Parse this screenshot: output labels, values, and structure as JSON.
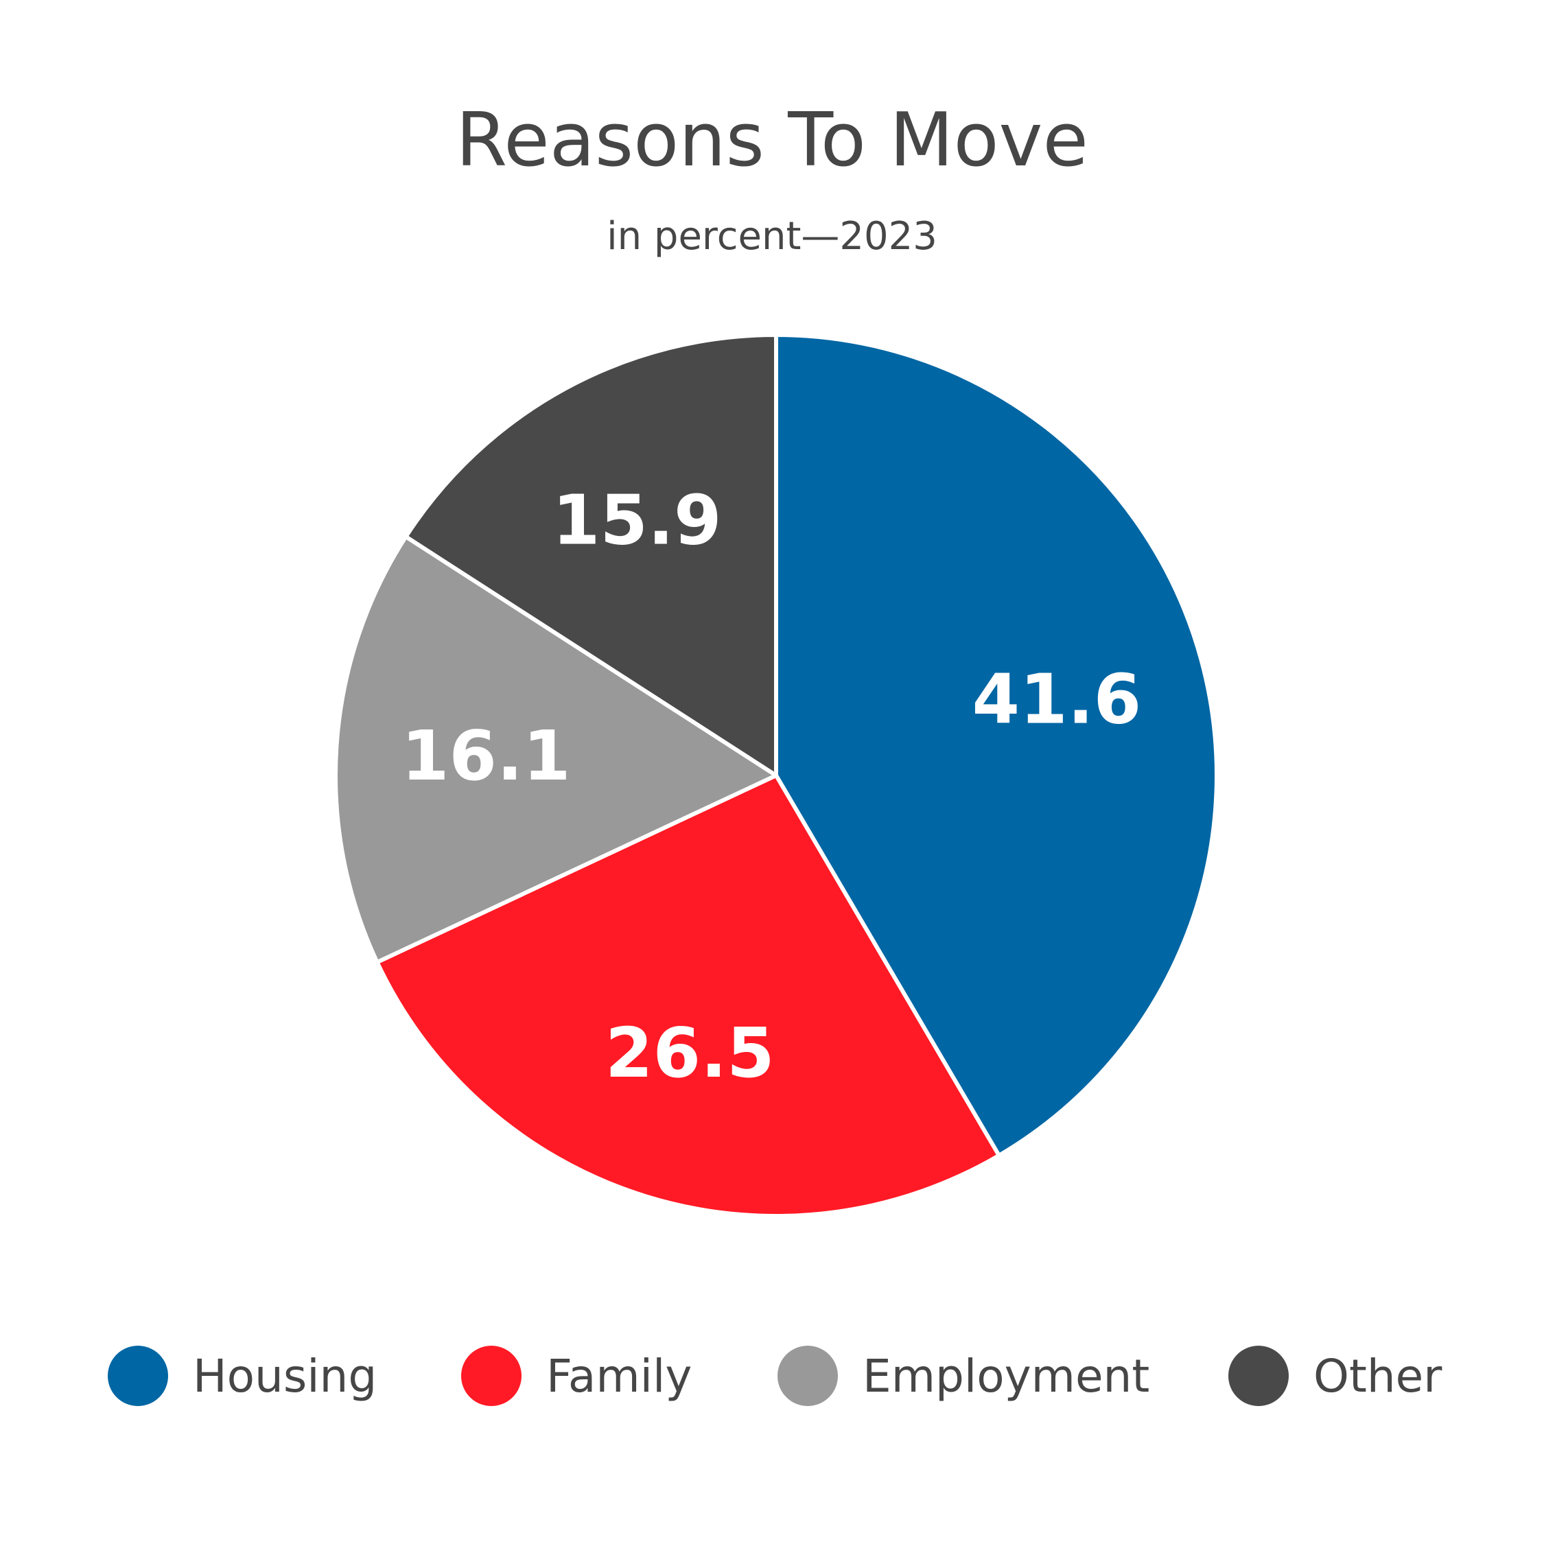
{
  "chart_data": {
    "type": "pie",
    "title": "Reasons To Move",
    "subtitle": "in percent—2023",
    "slices": [
      {
        "label": "Housing",
        "value": 41.6,
        "value_label": "41.6",
        "color": "#0066a4"
      },
      {
        "label": "Family",
        "value": 26.5,
        "value_label": "26.5",
        "color": "#ff1a25"
      },
      {
        "label": "Employment",
        "value": 16.1,
        "value_label": "16.1",
        "color": "#999999"
      },
      {
        "label": "Other",
        "value": 15.9,
        "value_label": "15.9",
        "color": "#494949"
      }
    ],
    "start_direction": "top, clockwise",
    "legend_position": "bottom",
    "separator_color": "#ffffff"
  }
}
